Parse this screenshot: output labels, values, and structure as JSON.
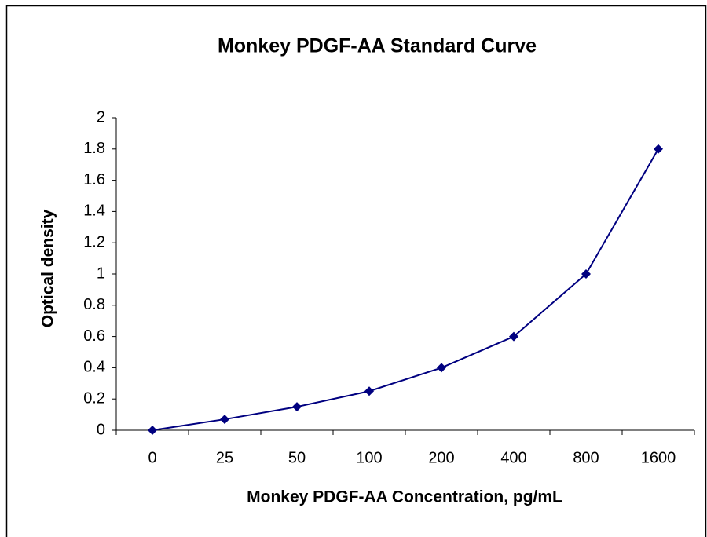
{
  "chart_data": {
    "type": "line",
    "title": "Monkey PDGF-AA Standard Curve",
    "x_label": "Monkey PDGF-AA Concentration, pg/mL",
    "y_label": "Optical density",
    "categories": [
      "0",
      "25",
      "50",
      "100",
      "200",
      "400",
      "800",
      "1600"
    ],
    "series": [
      {
        "color": "#000080",
        "values": [
          0,
          0.07,
          0.15,
          0.25,
          0.4,
          0.6,
          1.0,
          1.8
        ]
      }
    ],
    "ylim": [
      0,
      2
    ],
    "yticks": [
      0,
      0.2,
      0.4,
      0.6,
      0.8,
      1,
      1.2,
      1.4,
      1.6,
      1.8,
      2
    ],
    "grid": false
  }
}
